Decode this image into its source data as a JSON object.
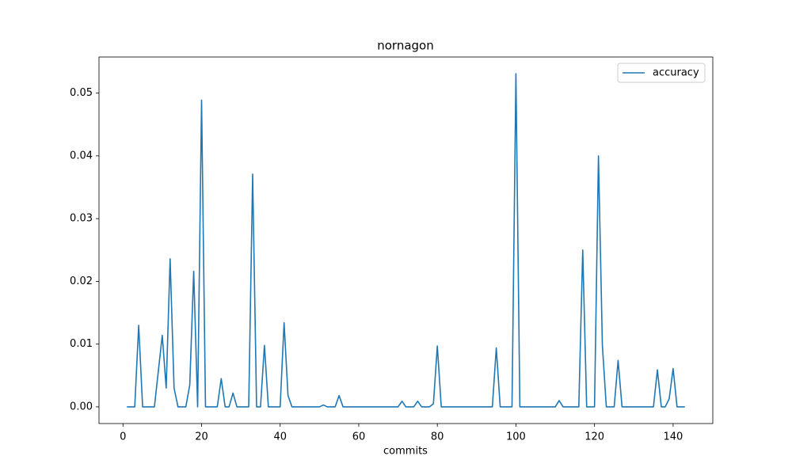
{
  "chart_data": {
    "type": "line",
    "title": "nornagon",
    "xlabel": "commits",
    "x": [
      1,
      2,
      3,
      4,
      5,
      6,
      7,
      8,
      9,
      10,
      11,
      12,
      13,
      14,
      15,
      16,
      17,
      18,
      19,
      20,
      21,
      22,
      23,
      24,
      25,
      26,
      27,
      28,
      29,
      30,
      31,
      32,
      33,
      34,
      35,
      36,
      37,
      38,
      39,
      40,
      41,
      42,
      43,
      44,
      45,
      46,
      47,
      48,
      49,
      50,
      51,
      52,
      53,
      54,
      55,
      56,
      57,
      58,
      59,
      60,
      61,
      62,
      63,
      64,
      65,
      66,
      67,
      68,
      69,
      70,
      71,
      72,
      73,
      74,
      75,
      76,
      77,
      78,
      79,
      80,
      81,
      82,
      83,
      84,
      85,
      86,
      87,
      88,
      89,
      90,
      91,
      92,
      93,
      94,
      95,
      96,
      97,
      98,
      99,
      100,
      101,
      102,
      103,
      104,
      105,
      106,
      107,
      108,
      109,
      110,
      111,
      112,
      113,
      114,
      115,
      116,
      117,
      118,
      119,
      120,
      121,
      122,
      123,
      124,
      125,
      126,
      127,
      128,
      129,
      130,
      131,
      132,
      133,
      134,
      135,
      136,
      137,
      138,
      139,
      140,
      141,
      142,
      143
    ],
    "series": [
      {
        "name": "accuracy",
        "color": "#1f77b4",
        "values": [
          0,
          0,
          0,
          0.013,
          0,
          0,
          0,
          0,
          0.0057,
          0.0114,
          0.003,
          0.0236,
          0.003,
          0,
          0,
          0,
          0.0035,
          0.0216,
          0,
          0.0489,
          0,
          0,
          0,
          0,
          0.0045,
          0,
          0,
          0.0022,
          0,
          0,
          0,
          0,
          0.0371,
          0,
          0,
          0.0098,
          0,
          0,
          0,
          0,
          0.0134,
          0.0018,
          0,
          0,
          0,
          0,
          0,
          0,
          0,
          0,
          0.0003,
          0,
          0,
          0,
          0.0018,
          0,
          0,
          0,
          0,
          0,
          0,
          0,
          0,
          0,
          0,
          0,
          0,
          0,
          0,
          0,
          0.0009,
          0,
          0,
          0,
          0.0009,
          0,
          0,
          0,
          0.0005,
          0.0097,
          0,
          0,
          0,
          0,
          0,
          0,
          0,
          0,
          0,
          0,
          0,
          0,
          0,
          0,
          0.0094,
          0,
          0,
          0,
          0,
          0.0531,
          0,
          0,
          0,
          0,
          0,
          0,
          0,
          0,
          0,
          0,
          0.001,
          0,
          0,
          0,
          0,
          0,
          0.025,
          0,
          0,
          0,
          0.04,
          0.0098,
          0,
          0,
          0,
          0.0074,
          0,
          0,
          0,
          0,
          0,
          0,
          0,
          0,
          0,
          0.0059,
          0,
          0,
          0.0013,
          0.0061,
          0,
          0,
          0
        ]
      }
    ],
    "xlim": [
      -6.1,
      150.1
    ],
    "xticks": [
      0,
      20,
      40,
      60,
      80,
      100,
      120,
      140
    ],
    "ylim": [
      -0.00266,
      0.05576
    ],
    "yticks": [
      {
        "value": 0,
        "label": "0.00"
      },
      {
        "value": 0.01,
        "label": "0.01"
      },
      {
        "value": 0.02,
        "label": "0.02"
      },
      {
        "value": 0.03,
        "label": "0.03"
      },
      {
        "value": 0.04,
        "label": "0.04"
      },
      {
        "value": 0.05,
        "label": "0.05"
      }
    ],
    "legend": "upper right",
    "grid": false
  }
}
